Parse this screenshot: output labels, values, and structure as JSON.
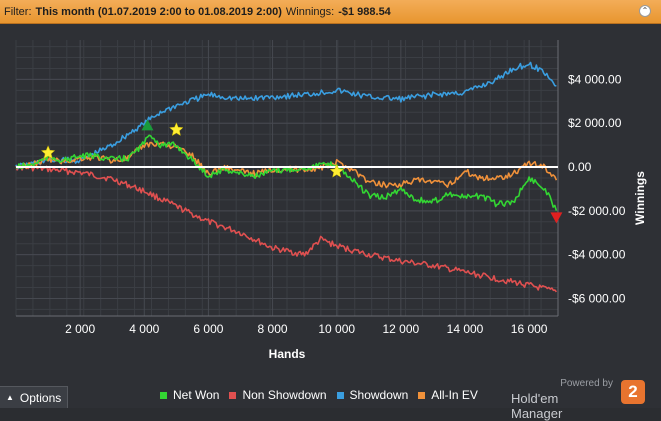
{
  "filter": {
    "label": "Filter:",
    "value": "This month (01.07.2019 2:00 to 01.08.2019 2:00)",
    "winnings_label": "Winnings:",
    "winnings_value": "-$1 988.54"
  },
  "options_label": "Options",
  "brand": {
    "powered_by": "Powered by",
    "name": "Hold'em Manager",
    "badge": "2"
  },
  "chart_data": {
    "type": "line",
    "xlabel": "Hands",
    "ylabel": "Winnings",
    "xlim": [
      0,
      16900
    ],
    "ylim": [
      -6800,
      5800
    ],
    "x_ticks": [
      2000,
      4000,
      6000,
      8000,
      10000,
      12000,
      14000,
      16000
    ],
    "x_tick_labels": [
      "2 000",
      "4 000",
      "6 000",
      "8 000",
      "10 000",
      "12 000",
      "14 000",
      "16 000"
    ],
    "y_ticks": [
      4000,
      2000,
      0,
      -2000,
      -4000,
      -6000
    ],
    "y_tick_labels": [
      "$4 000.00",
      "$2 000.00",
      "0.00",
      "-$2 000.00",
      "-$4 000.00",
      "-$6 000.00"
    ],
    "grid": true,
    "legend_position": "bottom",
    "series": [
      {
        "name": "Net Won",
        "color": "#33d633",
        "x": [
          0,
          500,
          1000,
          1500,
          2000,
          2500,
          3000,
          3500,
          4000,
          4200,
          4500,
          5000,
          5500,
          6000,
          6500,
          7000,
          7500,
          8000,
          8500,
          9000,
          9500,
          10000,
          10500,
          11000,
          11500,
          12000,
          12500,
          13000,
          13500,
          14000,
          14500,
          15000,
          15500,
          16000,
          16500,
          16850
        ],
        "values": [
          0,
          100,
          450,
          300,
          500,
          500,
          350,
          400,
          1100,
          1500,
          1000,
          1000,
          300,
          -400,
          -100,
          -300,
          -400,
          -200,
          -100,
          -50,
          100,
          100,
          -600,
          -1300,
          -1400,
          -1000,
          -1500,
          -1600,
          -1200,
          -1400,
          -1300,
          -1700,
          -1600,
          -500,
          -1000,
          -1990
        ]
      },
      {
        "name": "Non Showdown",
        "color": "#e05050",
        "x": [
          0,
          1000,
          2000,
          3000,
          4000,
          5000,
          6000,
          7000,
          8000,
          9000,
          9500,
          10000,
          11000,
          12000,
          13000,
          14000,
          15000,
          16000,
          16850
        ],
        "values": [
          0,
          -100,
          -250,
          -550,
          -1100,
          -1800,
          -2500,
          -3000,
          -3700,
          -4000,
          -3300,
          -3600,
          -4000,
          -4300,
          -4500,
          -4800,
          -5100,
          -5400,
          -5700
        ]
      },
      {
        "name": "Showdown",
        "color": "#3a9ee0",
        "x": [
          0,
          1000,
          2000,
          3000,
          3500,
          4000,
          4500,
          5000,
          6000,
          7000,
          8000,
          9000,
          10000,
          11000,
          12000,
          13000,
          14000,
          15000,
          15500,
          16000,
          16500,
          16850
        ],
        "values": [
          0,
          300,
          300,
          1000,
          1500,
          2000,
          2500,
          2800,
          3300,
          3100,
          3200,
          3300,
          3500,
          3200,
          3100,
          3300,
          3400,
          4000,
          4500,
          4700,
          4300,
          3700
        ]
      },
      {
        "name": "All-In EV",
        "color": "#f0913a",
        "x": [
          0,
          500,
          1000,
          1500,
          2000,
          2500,
          3000,
          3500,
          4000,
          4500,
          5000,
          5500,
          6000,
          6500,
          7000,
          7500,
          8000,
          8500,
          9000,
          9500,
          10000,
          10500,
          11000,
          11500,
          12000,
          12500,
          13000,
          13500,
          14000,
          14500,
          15000,
          15500,
          16000,
          16500,
          16850
        ],
        "values": [
          0,
          100,
          350,
          250,
          400,
          450,
          300,
          400,
          1000,
          1100,
          900,
          500,
          -300,
          0,
          -200,
          -300,
          -100,
          -100,
          -100,
          -50,
          200,
          -100,
          -700,
          -800,
          -800,
          -600,
          -700,
          -800,
          -200,
          -500,
          -500,
          -300,
          200,
          0,
          -600
        ]
      }
    ],
    "star_markers": [
      {
        "x": 1000,
        "y": 650
      },
      {
        "x": 5000,
        "y": 1700
      },
      {
        "x": 10000,
        "y": -200
      }
    ],
    "marker_colors": {
      "star": "#ffee33",
      "peak": "#1a9a3a",
      "end": "#e02020"
    },
    "peak_marker": {
      "x": 4100,
      "y": 1900
    },
    "end_marker": {
      "x": 16850,
      "y": -2300
    }
  }
}
